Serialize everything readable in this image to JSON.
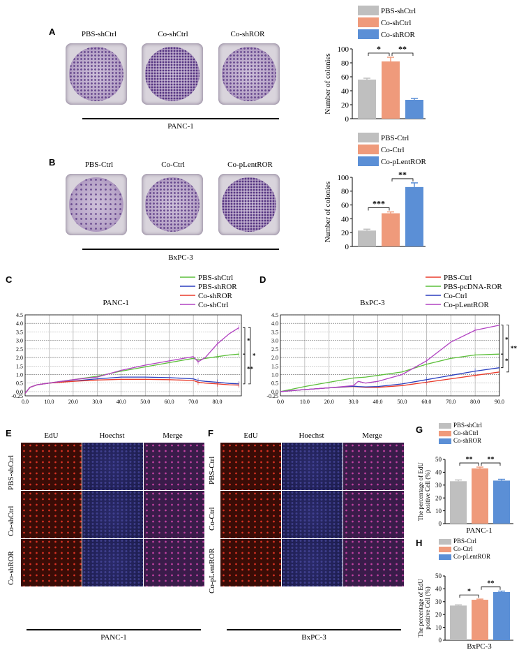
{
  "panelA": {
    "letter": "A",
    "plates": [
      "PBS-shCtrl",
      "Co-shCtrl",
      "Co-shROR"
    ],
    "cell_line": "PANC-1"
  },
  "panelB": {
    "letter": "B",
    "plates": [
      "PBS-Ctrl",
      "Co-Ctrl",
      "Co-pLentROR"
    ],
    "cell_line": "BxPC-3"
  },
  "panelC": {
    "letter": "C",
    "title": "PANC-1"
  },
  "panelD": {
    "letter": "D",
    "title": "BxPC-3"
  },
  "panelE": {
    "letter": "E",
    "columns": [
      "EdU",
      "Hoechst",
      "Merge"
    ],
    "rows": [
      "PBS-shCtrl",
      "Co-shCtrl",
      "Co-shROR"
    ],
    "cell_line": "PANC-1"
  },
  "panelF": {
    "letter": "F",
    "columns": [
      "EdU",
      "Hoechst",
      "Merge"
    ],
    "rows": [
      "PBS-Ctrl",
      "Co-Ctrl",
      "Co-pLentROR"
    ],
    "cell_line": "BxPC-3"
  },
  "panelG": {
    "letter": "G",
    "cell_line": "PANC-1"
  },
  "panelH": {
    "letter": "H",
    "cell_line": "BxPC-3"
  },
  "colors": {
    "grey": "#bfbfbf",
    "salmon": "#ef9a7b",
    "blue": "#5b8fd6",
    "green": "#5cbf3a",
    "red": "#ea3b2b",
    "purple": "#b243c2",
    "navy": "#2b3fbf"
  },
  "chart_data": [
    {
      "panel": "A",
      "type": "bar",
      "categories": [
        "PBS-shCtrl",
        "Co-shCtrl",
        "Co-shROR"
      ],
      "values": [
        56,
        82,
        27
      ],
      "errors": [
        2,
        6,
        2
      ],
      "ylabel": "Number of colonies",
      "ylim": [
        0,
        100
      ],
      "yticks": [
        0,
        20,
        40,
        60,
        80,
        100
      ],
      "legend": [
        "PBS-shCtrl",
        "Co-shCtrl",
        "Co-shROR"
      ],
      "significance": [
        {
          "between": [
            0,
            1
          ],
          "label": "*"
        },
        {
          "between": [
            1,
            2
          ],
          "label": "**"
        }
      ]
    },
    {
      "panel": "B",
      "type": "bar",
      "categories": [
        "PBS-Ctrl",
        "Co-Ctrl",
        "Co-pLentROR"
      ],
      "values": [
        23,
        48,
        86
      ],
      "errors": [
        2,
        2,
        6
      ],
      "ylabel": "Number of colonies",
      "ylim": [
        0,
        100
      ],
      "yticks": [
        0,
        20,
        40,
        60,
        80,
        100
      ],
      "legend": [
        "PBS-Ctrl",
        "Co-Ctrl",
        "Co-pLentROR"
      ],
      "significance": [
        {
          "between": [
            0,
            1
          ],
          "label": "***"
        },
        {
          "between": [
            1,
            2
          ],
          "label": "**"
        }
      ]
    },
    {
      "panel": "C",
      "type": "line",
      "title": "PANC-1",
      "xlim": [
        0,
        90
      ],
      "ylim": [
        -0.25,
        4.5
      ],
      "xticks": [
        "0.0",
        "10.0",
        "20.0",
        "30.0",
        "40.0",
        "50.0",
        "60.0",
        "70.0",
        "80.0"
      ],
      "yticks": [
        "-0.25",
        "0.0",
        "0.5",
        "1.0",
        "1.5",
        "2.0",
        "2.5",
        "3.0",
        "3.5",
        "4.0",
        "4.5"
      ],
      "x": [
        0,
        2,
        5,
        10,
        20,
        30,
        40,
        50,
        60,
        70,
        72,
        75,
        80,
        85,
        89
      ],
      "series": [
        {
          "name": "PBS-shCtrl",
          "values": [
            -0.1,
            0.25,
            0.4,
            0.5,
            0.7,
            0.9,
            1.2,
            1.45,
            1.7,
            1.95,
            1.85,
            1.95,
            2.05,
            2.15,
            2.2
          ]
        },
        {
          "name": "PBS-shROR",
          "values": [
            -0.1,
            0.25,
            0.4,
            0.5,
            0.62,
            0.75,
            0.85,
            0.85,
            0.82,
            0.75,
            0.65,
            0.6,
            0.55,
            0.48,
            0.45
          ]
        },
        {
          "name": "Co-shROR",
          "values": [
            -0.1,
            0.25,
            0.4,
            0.5,
            0.6,
            0.68,
            0.72,
            0.72,
            0.7,
            0.65,
            0.55,
            0.5,
            0.45,
            0.4,
            0.38
          ]
        },
        {
          "name": "Co-shCtrl",
          "values": [
            -0.1,
            0.25,
            0.4,
            0.5,
            0.7,
            0.85,
            1.25,
            1.55,
            1.8,
            2.05,
            1.75,
            2.0,
            2.8,
            3.4,
            3.75
          ]
        }
      ],
      "significance": [
        "*",
        "*",
        "**"
      ]
    },
    {
      "panel": "D",
      "type": "line",
      "title": "BxPC-3",
      "xlim": [
        0,
        90
      ],
      "ylim": [
        -0.25,
        4.5
      ],
      "xticks": [
        "0.0",
        "10.0",
        "20.0",
        "30.0",
        "40.0",
        "50.0",
        "60.0",
        "70.0",
        "80.0",
        "90.0"
      ],
      "yticks": [
        "-0.25",
        "0.0",
        "0.5",
        "1.0",
        "1.5",
        "2.0",
        "2.5",
        "3.0",
        "3.5",
        "4.0",
        "4.5"
      ],
      "x": [
        0,
        10,
        20,
        30,
        32,
        35,
        40,
        50,
        60,
        70,
        80,
        90
      ],
      "series": [
        {
          "name": "PBS-Ctrl",
          "values": [
            0.0,
            0.12,
            0.22,
            0.3,
            0.28,
            0.25,
            0.25,
            0.35,
            0.55,
            0.75,
            0.95,
            1.15
          ]
        },
        {
          "name": "PBS-pcDNA-ROR",
          "values": [
            0.0,
            0.3,
            0.55,
            0.8,
            0.82,
            0.85,
            0.95,
            1.15,
            1.6,
            1.95,
            2.15,
            2.2
          ]
        },
        {
          "name": "Co-Ctrl",
          "values": [
            0.0,
            0.12,
            0.22,
            0.32,
            0.3,
            0.28,
            0.3,
            0.45,
            0.7,
            0.95,
            1.2,
            1.4
          ]
        },
        {
          "name": "Co-pLentROR",
          "values": [
            0.0,
            0.12,
            0.22,
            0.35,
            0.6,
            0.5,
            0.6,
            1.0,
            1.8,
            2.9,
            3.6,
            3.9
          ]
        }
      ],
      "significance": [
        "*",
        "**",
        "*"
      ]
    },
    {
      "panel": "G",
      "type": "bar",
      "categories": [
        "PBS-shCtrl",
        "Co-shCtrl",
        "Co-shROR"
      ],
      "values": [
        33,
        43,
        33.5
      ],
      "errors": [
        1,
        1,
        1
      ],
      "ylabel": "The percentage of EdU positive Cell (%)",
      "ylim": [
        0,
        50
      ],
      "yticks": [
        0,
        10,
        20,
        30,
        40,
        50
      ],
      "legend": [
        "PBS-shCtrl",
        "Co-shCtrl",
        "Co-shROR"
      ],
      "significance": [
        {
          "between": [
            0,
            1
          ],
          "label": "**"
        },
        {
          "between": [
            1,
            2
          ],
          "label": "**"
        }
      ]
    },
    {
      "panel": "H",
      "type": "bar",
      "categories": [
        "PBS-Ctrl",
        "Co-Ctrl",
        "Co-pLentROR"
      ],
      "values": [
        27,
        31.5,
        37.5
      ],
      "errors": [
        0.5,
        0.5,
        0.7
      ],
      "ylabel": "The percentage of EdU positive Cell (%)",
      "ylim": [
        0,
        50
      ],
      "yticks": [
        0,
        10,
        20,
        30,
        40,
        50
      ],
      "legend": [
        "PBS-Ctrl",
        "Co-Ctrl",
        "Co-pLentROR"
      ],
      "significance": [
        {
          "between": [
            0,
            1
          ],
          "label": "*"
        },
        {
          "between": [
            1,
            2
          ],
          "label": "**"
        }
      ]
    }
  ]
}
